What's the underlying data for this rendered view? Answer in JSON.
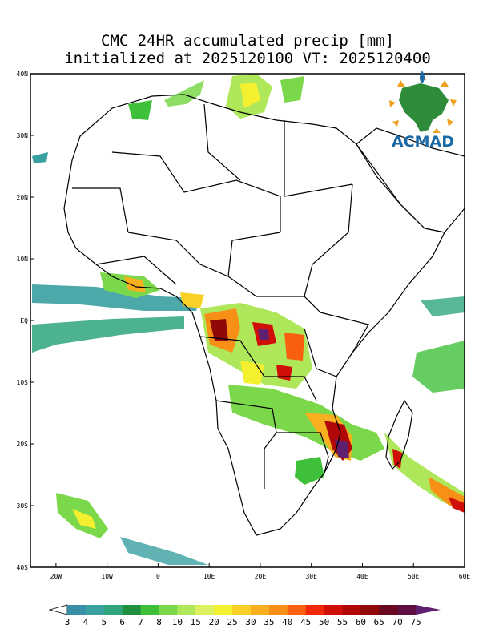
{
  "title_line1": "CMC 24HR accumulated precip [mm]",
  "title_line2": "initialized at 2025120100 VT: 2025120400",
  "logo_text": "ACMAD",
  "map": {
    "lon_range": [
      -25,
      60
    ],
    "lat_range": [
      -40,
      40
    ],
    "lat_ticks": [
      {
        "value": 40,
        "label": "40N"
      },
      {
        "value": 30,
        "label": "30N"
      },
      {
        "value": 20,
        "label": "20N"
      },
      {
        "value": 10,
        "label": "10N"
      },
      {
        "value": 0,
        "label": "EQ"
      },
      {
        "value": -10,
        "label": "10S"
      },
      {
        "value": -20,
        "label": "20S"
      },
      {
        "value": -30,
        "label": "30S"
      },
      {
        "value": -40,
        "label": "40S"
      }
    ],
    "lon_ticks": [
      {
        "value": -20,
        "label": "20W"
      },
      {
        "value": -10,
        "label": "10W"
      },
      {
        "value": 0,
        "label": "0"
      },
      {
        "value": 10,
        "label": "10E"
      },
      {
        "value": 20,
        "label": "20E"
      },
      {
        "value": 30,
        "label": "30E"
      },
      {
        "value": 40,
        "label": "40E"
      },
      {
        "value": 50,
        "label": "50E"
      },
      {
        "value": 60,
        "label": "60E"
      }
    ]
  },
  "colorbar": {
    "labels": [
      "3",
      "4",
      "5",
      "6",
      "7",
      "8",
      "10",
      "15",
      "20",
      "25",
      "30",
      "35",
      "40",
      "45",
      "50",
      "55",
      "60",
      "65",
      "70",
      "75"
    ],
    "colors": [
      "#3a8fa8",
      "#3aa0a0",
      "#2ea57a",
      "#209040",
      "#3fc03a",
      "#7ad84a",
      "#aee85a",
      "#dcf060",
      "#f4f030",
      "#f8d028",
      "#f8b020",
      "#f89018",
      "#f86010",
      "#f02808",
      "#d01008",
      "#b00808",
      "#900808",
      "#6a0a20",
      "#601040",
      "#602070"
    ]
  },
  "chart_data": {
    "type": "heatmap",
    "title": "CMC 24HR accumulated precip [mm]",
    "subtitle": "initialized at 2025120100 VT: 2025120400",
    "units": "mm",
    "xlim": [
      -25,
      60
    ],
    "ylim": [
      -40,
      40
    ],
    "levels": [
      3,
      4,
      5,
      6,
      7,
      8,
      10,
      15,
      20,
      25,
      30,
      35,
      40,
      45,
      50,
      55,
      60,
      65,
      70,
      75
    ]
  }
}
